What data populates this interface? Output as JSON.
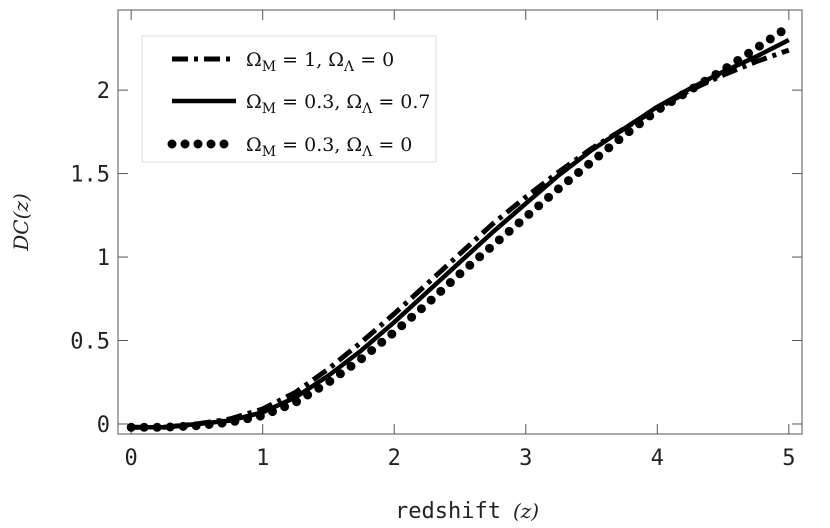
{
  "chart_data": {
    "type": "line",
    "xlabel": "redshift",
    "xlabel_var": "(z)",
    "ylabel": "DC(z)",
    "xlim": [
      -0.1,
      5.1
    ],
    "ylim": [
      -0.06,
      2.48
    ],
    "x_ticks": [
      0,
      1,
      2,
      3,
      4,
      5
    ],
    "x_tick_labels": [
      "0",
      "1",
      "2",
      "3",
      "4",
      "5"
    ],
    "y_ticks": [
      0,
      0.5,
      1,
      1.5,
      2
    ],
    "y_tick_labels": [
      "0",
      "0.5",
      "1",
      "1.5",
      "2"
    ],
    "grid": false,
    "legend_position": "top-left",
    "series": [
      {
        "name": "ΩM = 1, ΩΛ = 0",
        "style": "dashdot",
        "x": [
          0,
          0.25,
          0.5,
          0.75,
          1.0,
          1.25,
          1.5,
          1.75,
          2.0,
          2.25,
          2.5,
          2.75,
          3.0,
          3.25,
          3.5,
          3.75,
          4.0,
          4.25,
          4.5,
          4.75,
          5.0
        ],
        "values": [
          -0.02,
          -0.02,
          0.0,
          0.03,
          0.09,
          0.19,
          0.33,
          0.49,
          0.66,
          0.84,
          1.02,
          1.2,
          1.36,
          1.51,
          1.65,
          1.77,
          1.89,
          2.0,
          2.09,
          2.17,
          2.24
        ]
      },
      {
        "name": "ΩM = 0.3, ΩΛ = 0.7",
        "style": "solid",
        "x": [
          0,
          0.25,
          0.5,
          0.75,
          1.0,
          1.25,
          1.5,
          1.75,
          2.0,
          2.25,
          2.5,
          2.75,
          3.0,
          3.25,
          3.5,
          3.75,
          4.0,
          4.25,
          4.5,
          4.75,
          5.0
        ],
        "values": [
          -0.02,
          -0.02,
          0.0,
          0.02,
          0.07,
          0.16,
          0.29,
          0.44,
          0.61,
          0.79,
          0.97,
          1.15,
          1.32,
          1.49,
          1.64,
          1.77,
          1.9,
          2.01,
          2.11,
          2.2,
          2.3
        ]
      },
      {
        "name": "ΩM = 0.3, ΩΛ = 0",
        "style": "dotted",
        "x": [
          0,
          0.25,
          0.5,
          0.75,
          1.0,
          1.25,
          1.5,
          1.75,
          2.0,
          2.25,
          2.5,
          2.75,
          3.0,
          3.25,
          3.5,
          3.75,
          4.0,
          4.25,
          4.5,
          4.75,
          5.0
        ],
        "values": [
          -0.02,
          -0.02,
          -0.01,
          0.01,
          0.05,
          0.13,
          0.25,
          0.39,
          0.55,
          0.72,
          0.9,
          1.07,
          1.24,
          1.41,
          1.57,
          1.73,
          1.88,
          2.0,
          2.12,
          2.25,
          2.38
        ]
      }
    ]
  },
  "legend": {
    "entries": [
      {
        "prefix": "Ω",
        "sub1": "M",
        "mid": " = 1, Ω",
        "sub2": "Λ",
        "suffix": " = 0"
      },
      {
        "prefix": "Ω",
        "sub1": "M",
        "mid": " = 0.3, Ω",
        "sub2": "Λ",
        "suffix": " = 0.7"
      },
      {
        "prefix": "Ω",
        "sub1": "M",
        "mid": " = 0.3, Ω",
        "sub2": "Λ",
        "suffix": " = 0"
      }
    ]
  },
  "colors": {
    "line": "#000000",
    "frame": "#555555",
    "background": "#ffffff"
  }
}
